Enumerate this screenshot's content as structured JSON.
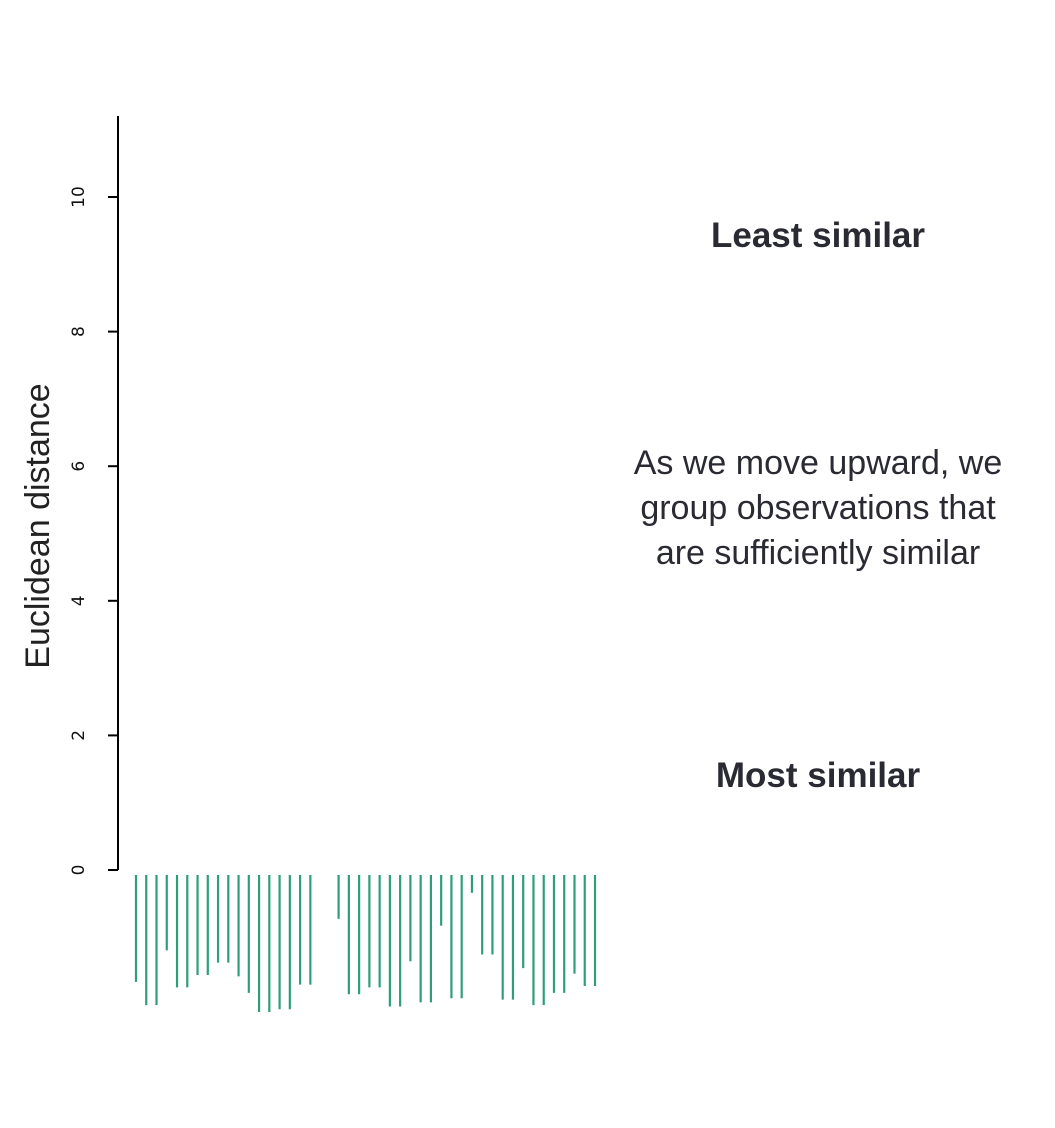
{
  "chart_data": {
    "type": "dendrogram",
    "ylabel": "Euclidean distance",
    "ylim": [
      0,
      11.2
    ],
    "yticks": [
      0,
      2,
      4,
      6,
      8,
      10
    ],
    "ytick_labels": [
      "0",
      "2",
      "4",
      "6",
      "8",
      "10"
    ],
    "leaf_color": "#2e9e7a",
    "leaf_count": 44,
    "leaf_depths": [
      0.78,
      0.95,
      0.95,
      0.55,
      0.82,
      0.82,
      0.73,
      0.73,
      0.64,
      0.64,
      0.74,
      0.86,
      1.0,
      1.0,
      0.98,
      0.98,
      0.8,
      0.8,
      0.32,
      0.87,
      0.87,
      0.82,
      0.82,
      0.96,
      0.96,
      0.63,
      0.93,
      0.93,
      0.37,
      0.9,
      0.9,
      0.13,
      0.58,
      0.58,
      0.91,
      0.91,
      0.68,
      0.95,
      0.95,
      0.86,
      0.86,
      0.72,
      0.81,
      0.81
    ],
    "annotations": {
      "top": "Least similar",
      "middle": [
        "As we move upward, we",
        "group observations that",
        "are sufficiently similar"
      ],
      "bottom": "Most similar"
    }
  }
}
